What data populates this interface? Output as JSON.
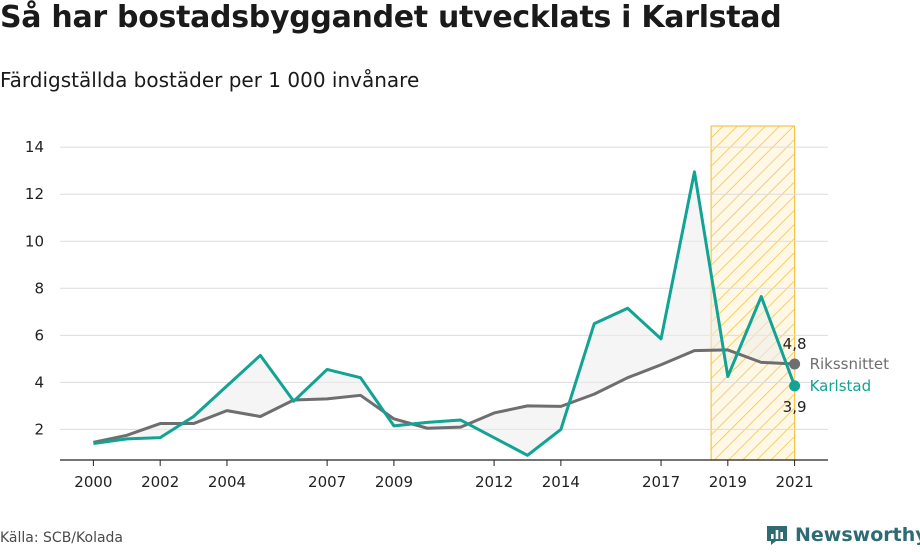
{
  "title": "Så har bostadsbyggandet utvecklats i Karlstad",
  "subtitle": "Färdigställda bostäder per 1 000 invånare",
  "source": "Källa: SCB/Kolada",
  "brand": {
    "name": "Newsworthy",
    "icon": "newsworthy-logo-icon"
  },
  "colors": {
    "karlstad": "#12a393",
    "riks": "#6e6e70",
    "highlight": "#f6c44a",
    "fill": "#ededed"
  },
  "chart_data": {
    "type": "line",
    "x": [
      2000,
      2001,
      2002,
      2003,
      2004,
      2005,
      2006,
      2007,
      2008,
      2009,
      2010,
      2011,
      2012,
      2013,
      2014,
      2015,
      2016,
      2017,
      2018,
      2019,
      2020,
      2021
    ],
    "x_ticks": [
      "2000",
      "2002",
      "2004",
      "2007",
      "2009",
      "2012",
      "2014",
      "2017",
      "2019",
      "2021"
    ],
    "y_ticks": [
      "2",
      "4",
      "6",
      "8",
      "10",
      "12",
      "14"
    ],
    "ylim": [
      0.7,
      14.9
    ],
    "xlim": [
      1999,
      2022
    ],
    "grid": true,
    "highlight_range": [
      2018.5,
      2021
    ],
    "series": [
      {
        "name": "Rikssnittet",
        "end_label": "4,8",
        "values": [
          1.45,
          1.75,
          2.25,
          2.25,
          2.8,
          2.55,
          3.25,
          3.3,
          3.45,
          2.45,
          2.05,
          2.1,
          2.7,
          3.0,
          2.98,
          3.5,
          4.2,
          4.75,
          5.35,
          5.38,
          4.85,
          4.78
        ]
      },
      {
        "name": "Karlstad",
        "end_label": "3,9",
        "values": [
          1.4,
          1.6,
          1.65,
          2.55,
          3.85,
          5.15,
          3.2,
          4.55,
          4.2,
          2.15,
          2.3,
          2.4,
          1.65,
          0.9,
          2.0,
          6.5,
          7.15,
          5.85,
          12.95,
          4.25,
          7.65,
          3.85
        ]
      }
    ]
  }
}
